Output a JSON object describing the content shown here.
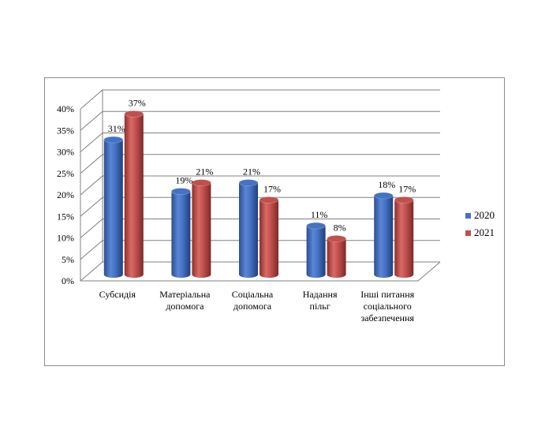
{
  "chart_data": {
    "type": "bar",
    "categories": [
      [
        "Субсидія"
      ],
      [
        "Матеріальна",
        "допомога"
      ],
      [
        "Соціальна",
        "допомога"
      ],
      [
        "Надання",
        "пільг"
      ],
      [
        "Інші питання",
        "соціального",
        "забезпечення"
      ]
    ],
    "series": [
      {
        "name": "2020",
        "values": [
          31,
          19,
          21,
          11,
          18
        ],
        "labels": [
          "31%",
          "19%",
          "21%",
          "11%",
          "18%"
        ],
        "color": "#4472c4"
      },
      {
        "name": "2021",
        "values": [
          37,
          21,
          17,
          8,
          17
        ],
        "labels": [
          "37%",
          "21%",
          "17%",
          "8%",
          "17%"
        ],
        "color": "#c0504d"
      }
    ],
    "ylim": [
      0,
      40
    ],
    "yticks": [
      "0%",
      "5%",
      "10%",
      "15%",
      "20%",
      "25%",
      "30%",
      "35%",
      "40%"
    ],
    "grid": true,
    "legend_position": "right",
    "style": "3d-cylinder"
  }
}
